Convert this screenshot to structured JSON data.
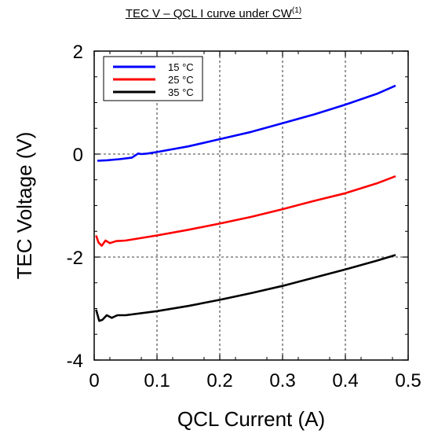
{
  "chart_data": {
    "type": "line",
    "title": "TEC V – QCL I curve under CW",
    "title_superscript": "(1)",
    "xlabel": "QCL Current (A)",
    "ylabel": "TEC Voltage (V)",
    "xlim": [
      0,
      0.5
    ],
    "ylim": [
      -4,
      2
    ],
    "x_ticks": [
      0,
      0.1,
      0.2,
      0.3,
      0.4,
      0.5
    ],
    "x_tick_labels": [
      "0",
      "0.1",
      "0.2",
      "0.3",
      "0.4",
      "0.5"
    ],
    "y_ticks": [
      -4,
      -2,
      0,
      2
    ],
    "y_tick_labels": [
      "-4",
      "-2",
      "0",
      "2"
    ],
    "grid": true,
    "legend_position": "top-left",
    "series": [
      {
        "name": "15 °C",
        "color": "#0000ff",
        "points": [
          [
            0.005,
            -0.13
          ],
          [
            0.02,
            -0.12
          ],
          [
            0.04,
            -0.1
          ],
          [
            0.06,
            -0.07
          ],
          [
            0.07,
            0.01
          ],
          [
            0.075,
            0.0
          ],
          [
            0.085,
            0.01
          ],
          [
            0.1,
            0.04
          ],
          [
            0.15,
            0.15
          ],
          [
            0.2,
            0.29
          ],
          [
            0.25,
            0.43
          ],
          [
            0.3,
            0.6
          ],
          [
            0.35,
            0.77
          ],
          [
            0.4,
            0.96
          ],
          [
            0.45,
            1.17
          ],
          [
            0.48,
            1.33
          ]
        ]
      },
      {
        "name": "25 °C",
        "color": "#ff0000",
        "points": [
          [
            0.003,
            -1.58
          ],
          [
            0.007,
            -1.72
          ],
          [
            0.012,
            -1.78
          ],
          [
            0.018,
            -1.68
          ],
          [
            0.025,
            -1.73
          ],
          [
            0.035,
            -1.69
          ],
          [
            0.05,
            -1.68
          ],
          [
            0.1,
            -1.58
          ],
          [
            0.15,
            -1.47
          ],
          [
            0.2,
            -1.35
          ],
          [
            0.25,
            -1.22
          ],
          [
            0.3,
            -1.07
          ],
          [
            0.35,
            -0.91
          ],
          [
            0.4,
            -0.76
          ],
          [
            0.45,
            -0.57
          ],
          [
            0.48,
            -0.43
          ]
        ]
      },
      {
        "name": "35 °C",
        "color": "#000000",
        "points": [
          [
            0.003,
            -3.02
          ],
          [
            0.008,
            -3.24
          ],
          [
            0.013,
            -3.22
          ],
          [
            0.02,
            -3.13
          ],
          [
            0.028,
            -3.18
          ],
          [
            0.037,
            -3.13
          ],
          [
            0.05,
            -3.13
          ],
          [
            0.1,
            -3.05
          ],
          [
            0.15,
            -2.95
          ],
          [
            0.2,
            -2.83
          ],
          [
            0.25,
            -2.7
          ],
          [
            0.3,
            -2.56
          ],
          [
            0.35,
            -2.4
          ],
          [
            0.4,
            -2.24
          ],
          [
            0.45,
            -2.07
          ],
          [
            0.48,
            -1.96
          ]
        ]
      }
    ]
  }
}
